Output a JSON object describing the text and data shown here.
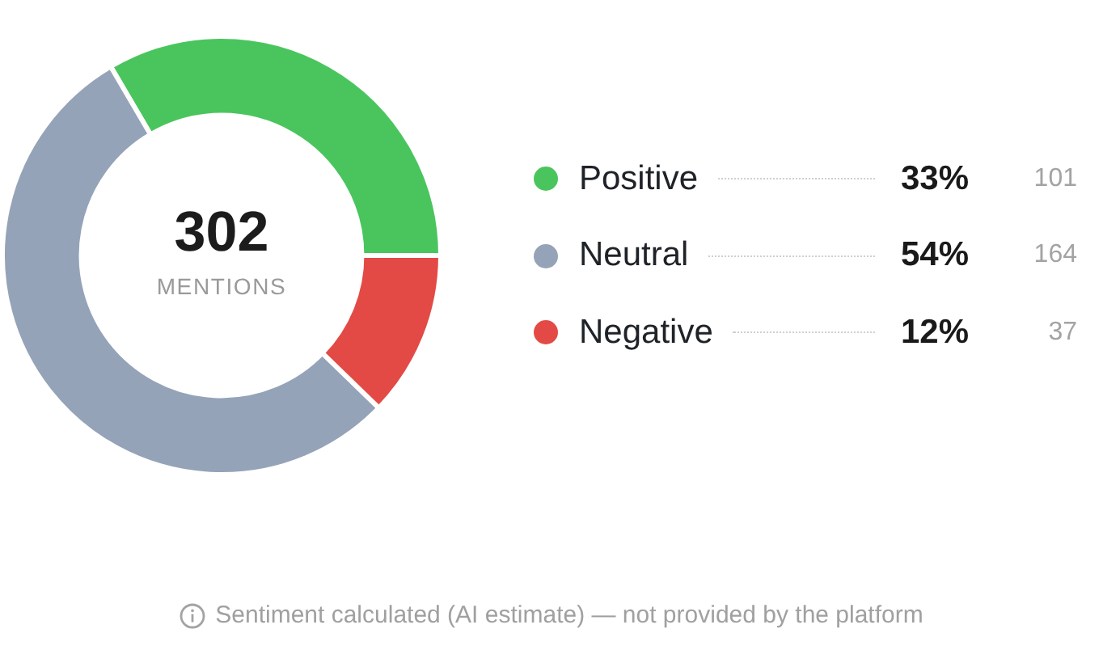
{
  "chart_data": {
    "type": "donut",
    "categories": [
      "Positive",
      "Neutral",
      "Negative"
    ],
    "values": [
      101,
      164,
      37
    ],
    "colors": [
      "#4ac55e",
      "#94a3b8",
      "#e34a45"
    ],
    "data_labels": true,
    "legend": "right",
    "annotations": [
      "302",
      "MENTIONS",
      {
        "text": "33%",
        "x": "Positive"
      },
      {
        "text": "54%",
        "x": "Neutral"
      },
      {
        "text": "12%",
        "x": "Negative"
      },
      "Sentiment calculated (AI estimate) — not provided by the platform"
    ]
  }
}
